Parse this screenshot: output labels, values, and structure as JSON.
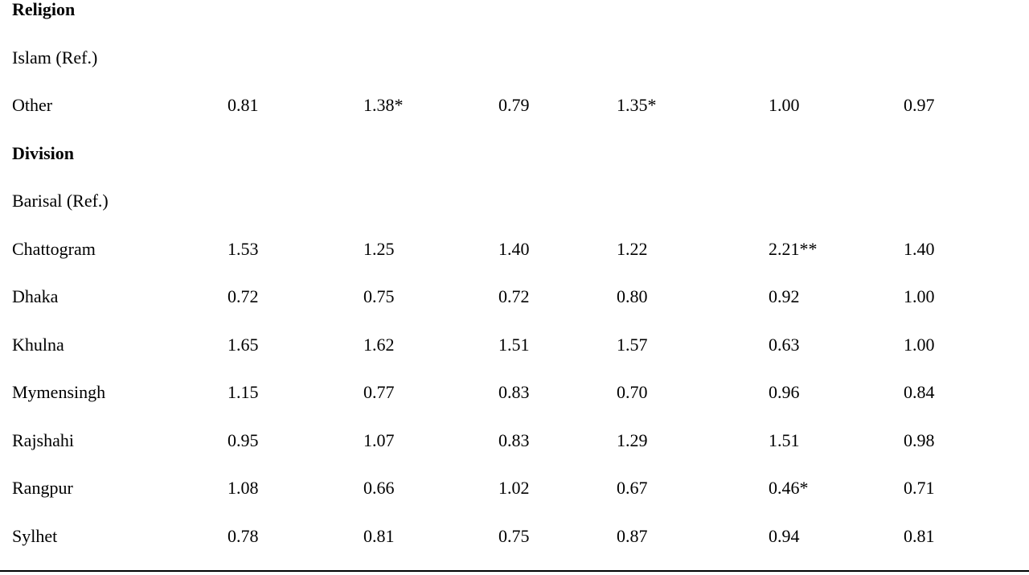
{
  "table": {
    "rows": [
      {
        "label": "Religion",
        "heading": true
      },
      {
        "label": "Islam (Ref.)"
      },
      {
        "label": "Other",
        "cells": [
          "0.81",
          "1.38*",
          "0.79",
          "1.35*",
          "1.00",
          "0.97"
        ]
      },
      {
        "label": "Division",
        "heading": true
      },
      {
        "label": "Barisal (Ref.)"
      },
      {
        "label": "Chattogram",
        "cells": [
          "1.53",
          "1.25",
          "1.40",
          "1.22",
          "2.21**",
          "1.40"
        ]
      },
      {
        "label": "Dhaka",
        "cells": [
          "0.72",
          "0.75",
          "0.72",
          "0.80",
          "0.92",
          "1.00"
        ]
      },
      {
        "label": "Khulna",
        "cells": [
          "1.65",
          "1.62",
          "1.51",
          "1.57",
          "0.63",
          "1.00"
        ]
      },
      {
        "label": "Mymensingh",
        "cells": [
          "1.15",
          "0.77",
          "0.83",
          "0.70",
          "0.96",
          "0.84"
        ]
      },
      {
        "label": "Rajshahi",
        "cells": [
          "0.95",
          "1.07",
          "0.83",
          "1.29",
          "1.51",
          "0.98"
        ]
      },
      {
        "label": "Rangpur",
        "cells": [
          "1.08",
          "0.66",
          "1.02",
          "0.67",
          "0.46*",
          "0.71"
        ]
      },
      {
        "label": "Sylhet",
        "cells": [
          "0.78",
          "0.81",
          "0.75",
          "0.87",
          "0.94",
          "0.81"
        ]
      }
    ]
  }
}
